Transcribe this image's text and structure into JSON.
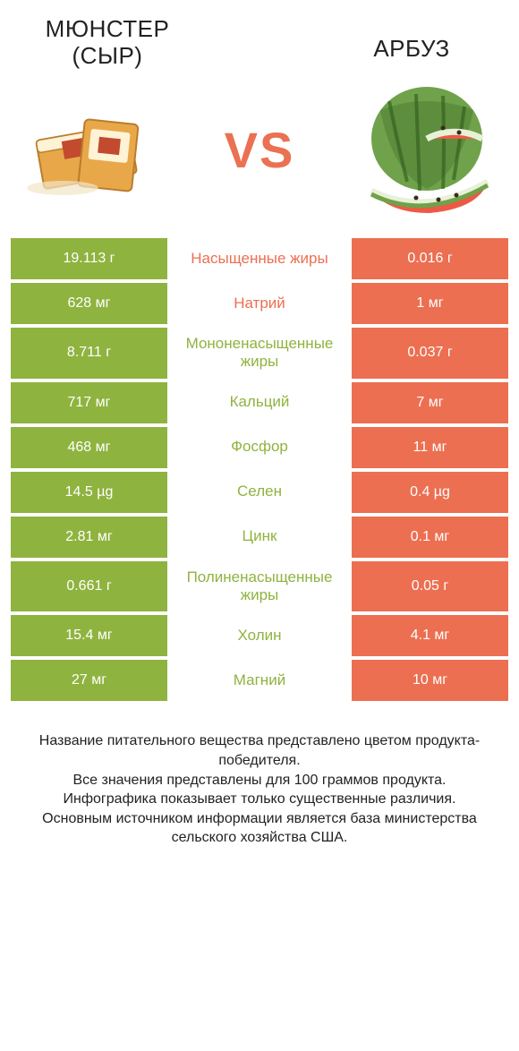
{
  "left_title": "МЮНСТЕР (СЫР)",
  "right_title": "АРБУЗ",
  "vs_label": "VS",
  "colors": {
    "left_bg": "#8fb33f",
    "right_bg": "#ec6f51",
    "left_text": "#8fb33f",
    "right_text": "#ec6f51",
    "vs": "#ea7152",
    "row_gap": "#ffffff"
  },
  "rows": [
    {
      "left": "19.113 г",
      "label": "Насыщенные жиры",
      "right": "0.016 г",
      "label_color": "right"
    },
    {
      "left": "628 мг",
      "label": "Натрий",
      "right": "1 мг",
      "label_color": "right"
    },
    {
      "left": "8.711 г",
      "label": "Мононенасыщенные жиры",
      "right": "0.037 г",
      "label_color": "left"
    },
    {
      "left": "717 мг",
      "label": "Кальций",
      "right": "7 мг",
      "label_color": "left"
    },
    {
      "left": "468 мг",
      "label": "Фосфор",
      "right": "11 мг",
      "label_color": "left"
    },
    {
      "left": "14.5 µg",
      "label": "Селен",
      "right": "0.4 µg",
      "label_color": "left"
    },
    {
      "left": "2.81 мг",
      "label": "Цинк",
      "right": "0.1 мг",
      "label_color": "left"
    },
    {
      "left": "0.661 г",
      "label": "Полиненасыщенные жиры",
      "right": "0.05 г",
      "label_color": "left"
    },
    {
      "left": "15.4 мг",
      "label": "Холин",
      "right": "4.1 мг",
      "label_color": "left"
    },
    {
      "left": "27 мг",
      "label": "Магний",
      "right": "10 мг",
      "label_color": "left"
    }
  ],
  "footer_lines": [
    "Название питательного вещества представлено цветом продукта-победителя.",
    "Все значения представлены для 100 граммов продукта.",
    "Инфографика показывает только существенные различия.",
    "Основным источником информации является база министерства сельского хозяйства США."
  ]
}
